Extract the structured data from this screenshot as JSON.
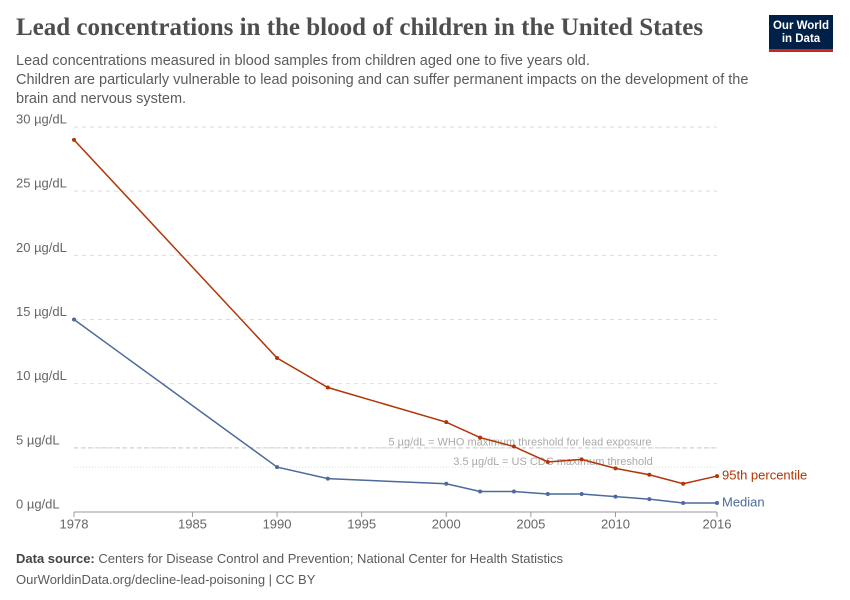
{
  "chart_data": {
    "type": "line",
    "title": "Lead concentrations in the blood of children in the United States",
    "subtitle": [
      "Lead concentrations measured in blood samples from children aged one to five years old.",
      "Children are particularly vulnerable to lead poisoning and can suffer permanent impacts on the development of the brain and nervous system."
    ],
    "logo": [
      "Our World",
      "in Data"
    ],
    "x": [
      1978,
      1990,
      1993,
      2000,
      2002,
      2004,
      2006,
      2008,
      2010,
      2012,
      2014,
      2016
    ],
    "series": [
      {
        "name": "95th percentile",
        "color": "#b13507",
        "values": [
          29.0,
          12.0,
          9.7,
          7.0,
          5.8,
          5.1,
          3.9,
          4.1,
          3.4,
          2.9,
          2.2,
          2.8
        ]
      },
      {
        "name": "Median",
        "color": "#4c6a9c",
        "values": [
          15.0,
          3.5,
          2.6,
          2.2,
          1.6,
          1.6,
          1.4,
          1.4,
          1.2,
          1.0,
          0.7,
          0.7
        ]
      }
    ],
    "reference_lines": [
      {
        "value": 5,
        "label": "5 µg/dL = WHO maximum threshold for lead exposure"
      },
      {
        "value": 3.5,
        "label": "3.5 µg/dL = US CDC maximum threshold"
      }
    ],
    "xlim": [
      1978,
      2016
    ],
    "xticks": [
      1978,
      1985,
      1990,
      1995,
      2000,
      2005,
      2010,
      2016
    ],
    "ylim": [
      0,
      30
    ],
    "yticks": [
      {
        "value": 0,
        "label": "0 µg/dL"
      },
      {
        "value": 5,
        "label": "5 µg/dL"
      },
      {
        "value": 10,
        "label": "10 µg/dL"
      },
      {
        "value": 15,
        "label": "15 µg/dL"
      },
      {
        "value": 20,
        "label": "20 µg/dL"
      },
      {
        "value": 25,
        "label": "25 µg/dL"
      },
      {
        "value": 30,
        "label": "30 µg/dL"
      }
    ],
    "grid": true,
    "source_label": "Data source:",
    "source": "Centers for Disease Control and Prevention; National Center for Health Statistics",
    "url": "OurWorldinData.org/decline-lead-poisoning | CC BY"
  }
}
